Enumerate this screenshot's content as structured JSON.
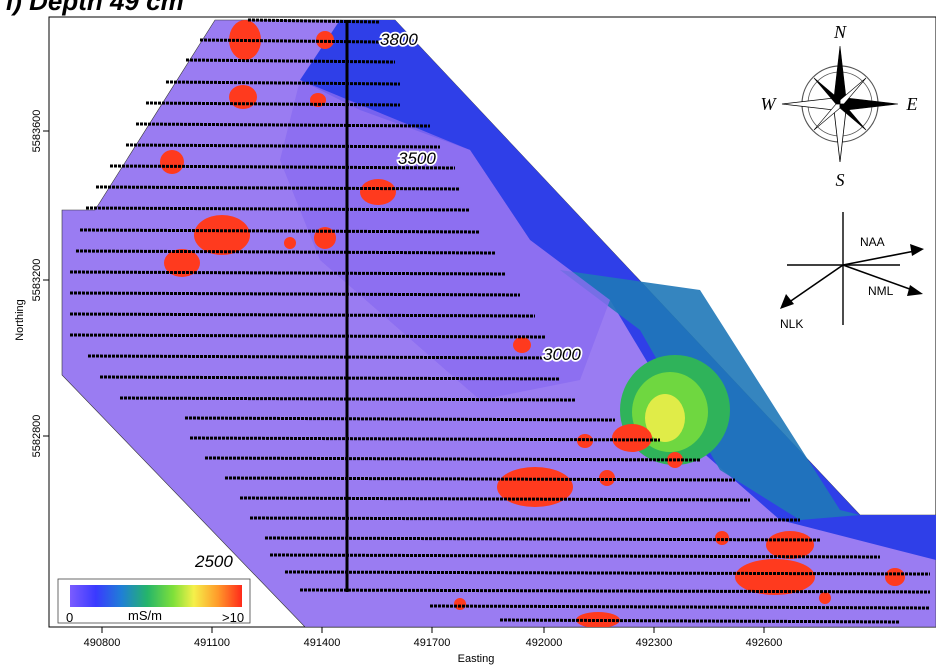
{
  "figure": {
    "title": "i) Depth 49 cm"
  },
  "axes": {
    "x_title": "Easting",
    "y_title": "Northing",
    "x_ticks": [
      "490800",
      "491100",
      "491400",
      "491700",
      "492000",
      "492300",
      "492600"
    ],
    "y_ticks": [
      "5583600",
      "5583200",
      "5582800"
    ]
  },
  "contour_labels": [
    "3800",
    "3500",
    "3000",
    "2500"
  ],
  "compass": {
    "north": "N",
    "south": "S",
    "east": "E",
    "west": "W"
  },
  "directions": [
    "NAA",
    "NML",
    "NLK"
  ],
  "legend": {
    "min_label": "0",
    "unit_label": "mS/m",
    "max_label": ">10",
    "colors": [
      "#7b5cff",
      "#3a3aff",
      "#1f7fd6",
      "#25b56a",
      "#7fe03a",
      "#f5f04a",
      "#ff9a2a",
      "#ff2a1a"
    ]
  },
  "palette": {
    "background_low": "#9a7cf2",
    "background_mid": "#2f3fe8",
    "background_teal": "#1f78b8",
    "green": "#3fc24a",
    "yellow": "#e8e84a",
    "hot": "#ff3a1e"
  }
}
